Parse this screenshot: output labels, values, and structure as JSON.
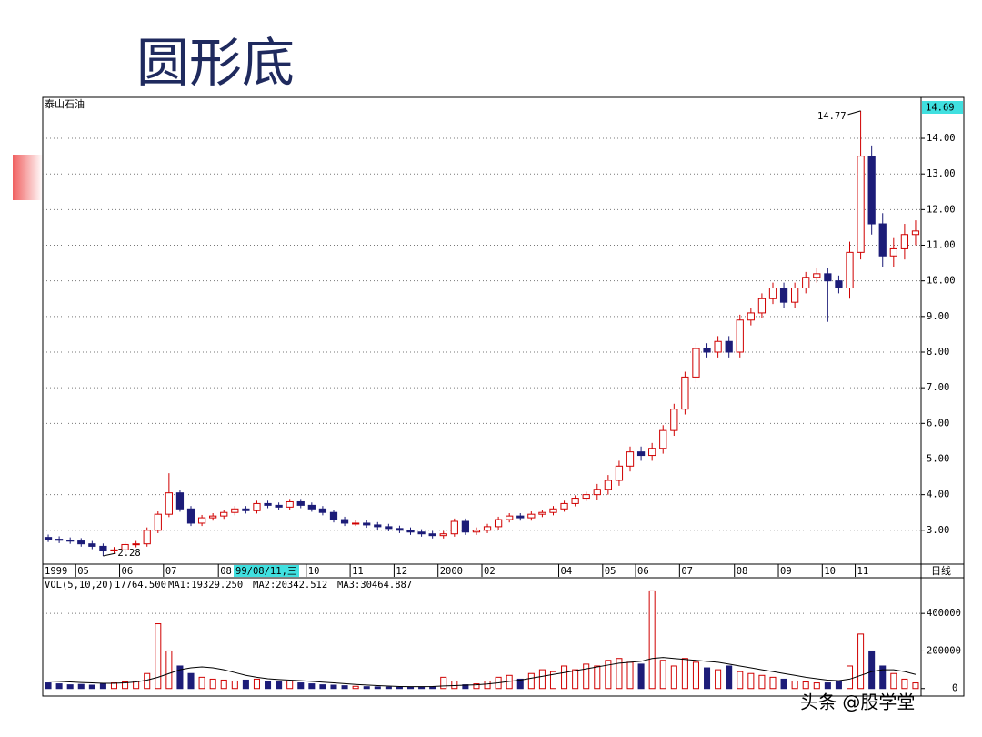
{
  "chart_data": {
    "type": "candlestick",
    "title": "圆形底",
    "stock": "泰山石油",
    "period": "日线",
    "current_price": "14.69",
    "cursor_date": "99/08/11,三",
    "watermark": "头条 @股学堂",
    "up_color": "#d00000",
    "down_color": "#1c1c78",
    "grid": true,
    "categories": [
      "1999",
      null,
      null,
      "05",
      null,
      null,
      null,
      "06",
      null,
      null,
      null,
      "07",
      null,
      null,
      null,
      null,
      "08",
      null,
      null,
      null,
      null,
      null,
      null,
      null,
      "10",
      null,
      null,
      null,
      "11",
      null,
      null,
      null,
      "12",
      null,
      null,
      null,
      "2000",
      null,
      null,
      null,
      "02",
      null,
      null,
      null,
      null,
      null,
      null,
      "04",
      null,
      null,
      null,
      "05",
      null,
      null,
      "06",
      null,
      null,
      null,
      "07",
      null,
      null,
      null,
      null,
      "08",
      null,
      null,
      null,
      "09",
      null,
      null,
      null,
      "10",
      null,
      null,
      "11",
      null,
      null,
      null,
      null,
      null
    ],
    "open": [
      2.8,
      2.75,
      2.72,
      2.7,
      2.62,
      2.55,
      2.42,
      2.45,
      2.6,
      2.62,
      3.0,
      3.45,
      4.05,
      3.6,
      3.2,
      3.35,
      3.4,
      3.5,
      3.6,
      3.55,
      3.75,
      3.7,
      3.65,
      3.8,
      3.7,
      3.6,
      3.5,
      3.3,
      3.2,
      3.2,
      3.15,
      3.1,
      3.05,
      3.0,
      2.95,
      2.9,
      2.85,
      2.9,
      3.25,
      2.95,
      3.0,
      3.1,
      3.3,
      3.4,
      3.35,
      3.45,
      3.5,
      3.6,
      3.75,
      3.9,
      4.0,
      4.15,
      4.4,
      4.8,
      5.2,
      5.1,
      5.3,
      5.8,
      6.4,
      7.3,
      8.1,
      8.0,
      8.3,
      8.0,
      8.9,
      9.1,
      9.5,
      9.8,
      9.4,
      9.8,
      10.1,
      10.2,
      10.0,
      9.8,
      10.8,
      13.5,
      11.6,
      10.7,
      10.9,
      11.3
    ],
    "high": [
      2.88,
      2.83,
      2.8,
      2.78,
      2.7,
      2.63,
      2.53,
      2.68,
      2.7,
      3.08,
      3.53,
      4.6,
      4.13,
      3.68,
      3.43,
      3.48,
      3.58,
      3.68,
      3.68,
      3.83,
      3.83,
      3.78,
      3.88,
      3.88,
      3.78,
      3.68,
      3.58,
      3.38,
      3.28,
      3.28,
      3.23,
      3.18,
      3.13,
      3.08,
      3.03,
      2.98,
      2.98,
      3.33,
      3.33,
      3.08,
      3.18,
      3.38,
      3.48,
      3.48,
      3.53,
      3.58,
      3.68,
      3.83,
      3.98,
      4.08,
      4.3,
      4.55,
      4.95,
      5.35,
      5.35,
      5.45,
      5.95,
      6.55,
      7.45,
      8.25,
      8.25,
      8.45,
      8.45,
      9.05,
      9.25,
      9.65,
      9.95,
      9.95,
      9.95,
      10.25,
      10.35,
      10.35,
      10.15,
      11.1,
      14.77,
      13.8,
      11.9,
      11.2,
      11.6,
      11.7
    ],
    "low": [
      2.67,
      2.64,
      2.62,
      2.54,
      2.47,
      2.28,
      2.34,
      2.37,
      2.52,
      2.54,
      2.92,
      3.37,
      3.52,
      3.12,
      3.12,
      3.27,
      3.32,
      3.42,
      3.47,
      3.47,
      3.62,
      3.57,
      3.57,
      3.62,
      3.52,
      3.42,
      3.22,
      3.12,
      3.12,
      3.07,
      3.02,
      2.97,
      2.92,
      2.87,
      2.82,
      2.77,
      2.77,
      2.82,
      2.87,
      2.87,
      2.92,
      3.02,
      3.22,
      3.27,
      3.27,
      3.37,
      3.42,
      3.52,
      3.67,
      3.82,
      3.85,
      4.0,
      4.25,
      4.65,
      4.95,
      4.95,
      5.15,
      5.65,
      6.25,
      7.15,
      7.85,
      7.85,
      7.85,
      7.85,
      8.75,
      8.95,
      9.35,
      9.25,
      9.25,
      9.65,
      9.95,
      8.85,
      9.65,
      9.5,
      10.6,
      11.3,
      10.4,
      10.4,
      10.6,
      11.0
    ],
    "close": [
      2.75,
      2.72,
      2.7,
      2.62,
      2.55,
      2.42,
      2.45,
      2.6,
      2.62,
      3.0,
      3.45,
      4.05,
      3.6,
      3.2,
      3.35,
      3.4,
      3.5,
      3.6,
      3.55,
      3.75,
      3.7,
      3.65,
      3.8,
      3.7,
      3.6,
      3.5,
      3.3,
      3.2,
      3.2,
      3.15,
      3.1,
      3.05,
      3.0,
      2.95,
      2.9,
      2.85,
      2.9,
      3.25,
      2.95,
      3.0,
      3.1,
      3.3,
      3.4,
      3.35,
      3.45,
      3.5,
      3.6,
      3.75,
      3.9,
      4.0,
      4.15,
      4.4,
      4.8,
      5.2,
      5.1,
      5.3,
      5.8,
      6.4,
      7.3,
      8.1,
      8.0,
      8.3,
      8.0,
      8.9,
      9.1,
      9.5,
      9.8,
      9.4,
      9.8,
      10.1,
      10.2,
      10.0,
      9.8,
      10.8,
      13.5,
      11.6,
      10.7,
      10.9,
      11.3,
      11.4
    ],
    "ylim": [
      2.05,
      15.15
    ],
    "yticks": [
      {
        "value": 3,
        "label": "3.00"
      },
      {
        "value": 4,
        "label": "4.00"
      },
      {
        "value": 5,
        "label": "5.00"
      },
      {
        "value": 6,
        "label": "6.00"
      },
      {
        "value": 7,
        "label": "7.00"
      },
      {
        "value": 8,
        "label": "8.00"
      },
      {
        "value": 9,
        "label": "9.00"
      },
      {
        "value": 10,
        "label": "10.00"
      },
      {
        "value": 11,
        "label": "11.00"
      },
      {
        "value": 12,
        "label": "12.00"
      },
      {
        "value": 13,
        "label": "13.00"
      },
      {
        "value": 14,
        "label": "14.00"
      }
    ],
    "volume": {
      "header": "VOL(5,10,20)",
      "header_value": "17764.500",
      "ylim": [
        -40000,
        585000
      ],
      "yticks": [
        0,
        200000,
        400000
      ],
      "values": [
        30000,
        25000,
        20000,
        22000,
        18000,
        25000,
        30000,
        35000,
        40000,
        80000,
        345000,
        200000,
        120000,
        80000,
        60000,
        50000,
        45000,
        40000,
        45000,
        50000,
        40000,
        35000,
        40000,
        30000,
        25000,
        20000,
        18000,
        15000,
        12000,
        10000,
        9000,
        8000,
        7000,
        8000,
        9000,
        10000,
        60000,
        40000,
        20000,
        25000,
        40000,
        60000,
        70000,
        50000,
        80000,
        100000,
        90000,
        120000,
        100000,
        130000,
        120000,
        150000,
        160000,
        140000,
        130000,
        520000,
        150000,
        120000,
        160000,
        140000,
        110000,
        100000,
        120000,
        90000,
        80000,
        70000,
        60000,
        50000,
        40000,
        35000,
        30000,
        30000,
        40000,
        120000,
        290000,
        200000,
        120000,
        80000,
        50000,
        30000
      ],
      "indicators": [
        {
          "label": "MA1:19329.250",
          "color": "#a000a0"
        },
        {
          "label": "MA2:20342.512",
          "color": "#404040"
        },
        {
          "label": "MA3:30464.887",
          "color": "#000000",
          "values": [
            40000,
            38000,
            35000,
            32000,
            30000,
            28000,
            28000,
            30000,
            35000,
            45000,
            60000,
            80000,
            100000,
            110000,
            115000,
            110000,
            100000,
            85000,
            70000,
            60000,
            52000,
            48000,
            45000,
            42000,
            38000,
            34000,
            30000,
            26000,
            22000,
            19000,
            16000,
            13000,
            11000,
            10000,
            10000,
            11000,
            14000,
            16000,
            18000,
            20000,
            24000,
            30000,
            38000,
            45000,
            55000,
            65000,
            75000,
            85000,
            95000,
            105000,
            115000,
            125000,
            135000,
            140000,
            145000,
            160000,
            165000,
            160000,
            155000,
            150000,
            145000,
            140000,
            130000,
            120000,
            110000,
            100000,
            90000,
            80000,
            70000,
            60000,
            52000,
            45000,
            42000,
            50000,
            70000,
            90000,
            100000,
            100000,
            90000,
            75000
          ]
        }
      ]
    }
  }
}
